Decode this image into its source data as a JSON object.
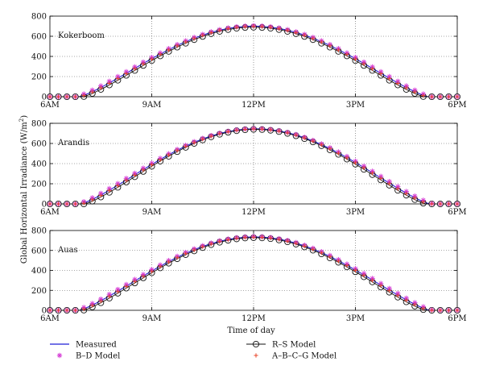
{
  "figure": {
    "ylabel": "Global Horizontal Irradiance (W/m",
    "ylabel_sup": "2",
    "ylabel_close": ")",
    "xlabel": "Time of day"
  },
  "legend": {
    "items": [
      {
        "key": "measured",
        "label": "Measured",
        "color": "#1f1fd6",
        "marker": "line"
      },
      {
        "key": "rs",
        "label": "R–S Model",
        "color": "#111111",
        "marker": "circle-line"
      },
      {
        "key": "bd",
        "label": "B–D Model",
        "color": "#d63fd6",
        "marker": "star"
      },
      {
        "key": "abcg",
        "label": "A–B–C–G Model",
        "color": "#e8452a",
        "marker": "plus"
      }
    ]
  },
  "chart_data": [
    {
      "type": "line",
      "panel_label": "Kokerboom",
      "xlabel": "",
      "ylabel": "",
      "xticks": [
        "6AM",
        "9AM",
        "12PM",
        "3PM",
        "6PM"
      ],
      "xlim": [
        6,
        18
      ],
      "ylim": [
        0,
        800
      ],
      "yticks": [
        0,
        200,
        400,
        600,
        800
      ],
      "grid": true,
      "model": {
        "sunrise": 6.85,
        "sunset": 17.15,
        "peak": 700,
        "sample_start": 6,
        "sample_end": 18,
        "sample_step": 0.25
      },
      "series": [
        {
          "name": "Measured",
          "key": "measured",
          "peak": 700,
          "shift": 0
        },
        {
          "name": "R–S Model",
          "key": "rs",
          "peak": 690,
          "shift": 0.12
        },
        {
          "name": "B–D Model",
          "key": "bd",
          "peak": 705,
          "shift": -0.1
        },
        {
          "name": "A–B–C–G Model",
          "key": "abcg",
          "peak": 698,
          "shift": 0.03
        }
      ]
    },
    {
      "type": "line",
      "panel_label": "Arandis",
      "xlabel": "",
      "ylabel": "",
      "xticks": [
        "6AM",
        "9AM",
        "12PM",
        "3PM",
        "6PM"
      ],
      "xlim": [
        6,
        18
      ],
      "ylim": [
        0,
        800
      ],
      "yticks": [
        0,
        200,
        400,
        600,
        800
      ],
      "grid": true,
      "model": {
        "sunrise": 6.9,
        "sunset": 17.2,
        "peak": 745,
        "sample_start": 6,
        "sample_end": 18,
        "sample_step": 0.25
      },
      "series": [
        {
          "name": "Measured",
          "key": "measured",
          "peak": 745,
          "shift": 0
        },
        {
          "name": "R–S Model",
          "key": "rs",
          "peak": 740,
          "shift": 0.12
        },
        {
          "name": "B–D Model",
          "key": "bd",
          "peak": 748,
          "shift": -0.1
        },
        {
          "name": "A–B–C–G Model",
          "key": "abcg",
          "peak": 744,
          "shift": 0.03
        }
      ]
    },
    {
      "type": "line",
      "panel_label": "Auas",
      "xlabel": "Time of day",
      "ylabel": "",
      "xticks": [
        "6AM",
        "9AM",
        "12PM",
        "3PM",
        "6PM"
      ],
      "xlim": [
        6,
        18
      ],
      "ylim": [
        0,
        800
      ],
      "yticks": [
        0,
        200,
        400,
        600,
        800
      ],
      "grid": true,
      "model": {
        "sunrise": 6.85,
        "sunset": 17.2,
        "peak": 735,
        "sample_start": 6,
        "sample_end": 18,
        "sample_step": 0.25
      },
      "series": [
        {
          "name": "Measured",
          "key": "measured",
          "peak": 735,
          "shift": 0
        },
        {
          "name": "R–S Model",
          "key": "rs",
          "peak": 728,
          "shift": 0.12
        },
        {
          "name": "B–D Model",
          "key": "bd",
          "peak": 740,
          "shift": -0.1
        },
        {
          "name": "A–B–C–G Model",
          "key": "abcg",
          "peak": 733,
          "shift": 0.03
        }
      ]
    }
  ]
}
